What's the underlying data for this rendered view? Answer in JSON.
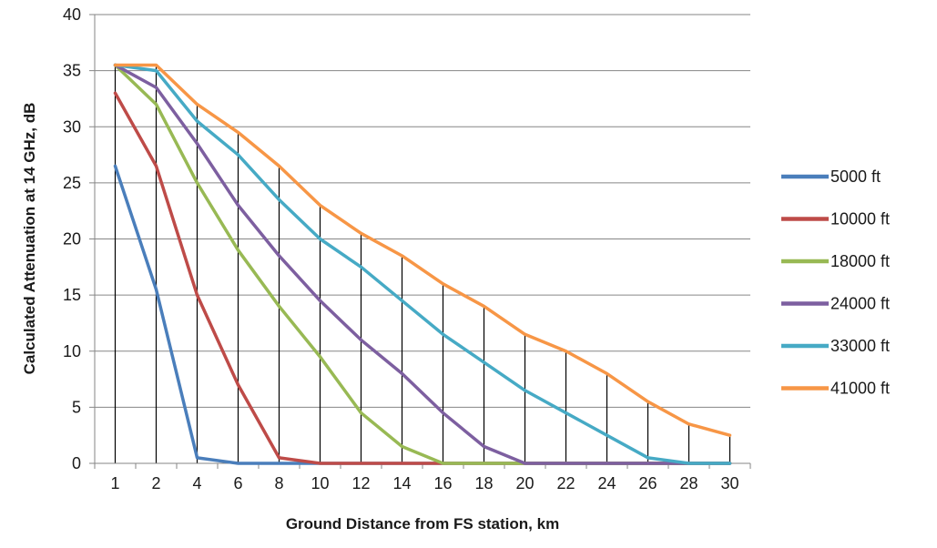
{
  "chart_data": {
    "type": "line",
    "title": "",
    "xlabel": "Ground Distance from FS station, km",
    "ylabel": "Calculated Attenuation at 14 GHz, dB",
    "categories": [
      "1",
      "2",
      "4",
      "6",
      "8",
      "10",
      "12",
      "14",
      "16",
      "18",
      "20",
      "22",
      "24",
      "26",
      "28",
      "30"
    ],
    "ylim": [
      0,
      40
    ],
    "yticks": [
      "0",
      "5",
      "10",
      "15",
      "20",
      "25",
      "30",
      "35",
      "40"
    ],
    "grid": "horizontal major gridlines; vertical drop lines from the 41000 ft series to the x-axis",
    "legend": "right",
    "series": [
      {
        "name": "5000 ft",
        "color": "#4a7ebb",
        "values": [
          26.5,
          15.5,
          0.5,
          0,
          0,
          0,
          0,
          0,
          0,
          0,
          0,
          0,
          0,
          0,
          0,
          0
        ]
      },
      {
        "name": "10000 ft",
        "color": "#be4b48",
        "values": [
          33,
          26.5,
          15,
          7,
          0.5,
          0,
          0,
          0,
          0,
          0,
          0,
          0,
          0,
          0,
          0,
          0
        ]
      },
      {
        "name": "18000 ft",
        "color": "#98b954",
        "values": [
          35.5,
          32,
          25,
          19,
          14,
          9.5,
          4.5,
          1.5,
          0,
          0,
          0,
          0,
          0,
          0,
          0,
          0
        ]
      },
      {
        "name": "24000 ft",
        "color": "#7d5fa0",
        "values": [
          35.5,
          33.5,
          28.5,
          23,
          18.5,
          14.5,
          11,
          8,
          4.5,
          1.5,
          0,
          0,
          0,
          0,
          0,
          0
        ]
      },
      {
        "name": "33000 ft",
        "color": "#46aac5",
        "values": [
          35.5,
          35,
          30.5,
          27.5,
          23.5,
          20,
          17.5,
          14.5,
          11.5,
          9,
          6.5,
          4.5,
          2.5,
          0.5,
          0,
          0
        ]
      },
      {
        "name": "41000 ft",
        "color": "#f79646",
        "values": [
          35.5,
          35.5,
          32,
          29.5,
          26.5,
          23,
          20.5,
          18.5,
          16,
          14,
          11.5,
          10,
          8,
          5.5,
          3.5,
          2.5
        ]
      }
    ]
  }
}
